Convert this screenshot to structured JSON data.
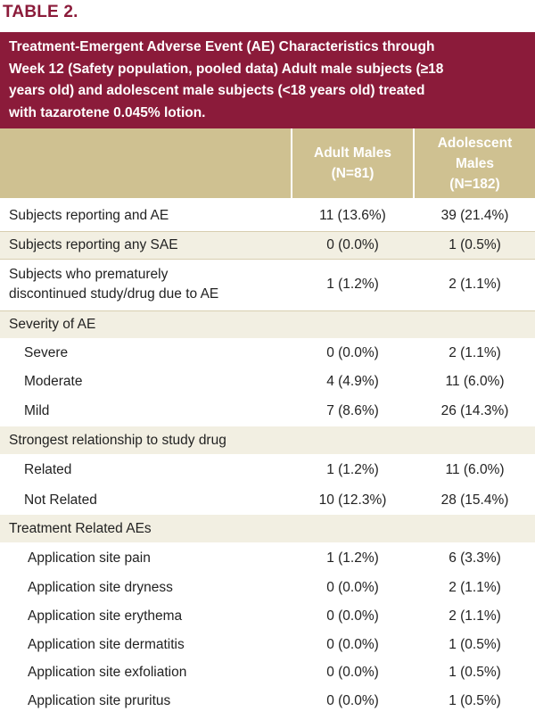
{
  "table_label": "TABLE 2.",
  "title_lines": [
    "Treatment-Emergent Adverse Event (AE) Characteristics through",
    "Week 12 (Safety population, pooled data) Adult male subjects (≥18",
    "years old) and adolescent male subjects (<18 years old) treated",
    "with tazarotene 0.045% lotion."
  ],
  "columns": {
    "adult": [
      "Adult Males",
      "(N=81)"
    ],
    "adolescent": [
      "Adolescent",
      "Males",
      "(N=182)"
    ]
  },
  "rows": [
    {
      "label": [
        "Subjects reporting and AE"
      ],
      "adult": "11 (13.6%)",
      "adolescent": "39 (21.4%)"
    },
    {
      "label": [
        "Subjects reporting any SAE"
      ],
      "adult": "0 (0.0%)",
      "adolescent": "1 (0.5%)"
    },
    {
      "label": [
        "Subjects who prematurely",
        "discontinued study/drug due to AE"
      ],
      "adult": "1 (1.2%)",
      "adolescent": "2 (1.1%)"
    },
    {
      "label": [
        "Severity of AE"
      ],
      "adult": "",
      "adolescent": ""
    },
    {
      "label": [
        "Severe"
      ],
      "adult": "0 (0.0%)",
      "adolescent": "2 (1.1%)"
    },
    {
      "label": [
        "Moderate"
      ],
      "adult": "4 (4.9%)",
      "adolescent": "11 (6.0%)"
    },
    {
      "label": [
        "Mild"
      ],
      "adult": "7 (8.6%)",
      "adolescent": "26 (14.3%)"
    },
    {
      "label": [
        "Strongest relationship to study drug"
      ],
      "adult": "",
      "adolescent": ""
    },
    {
      "label": [
        "Related"
      ],
      "adult": "1 (1.2%)",
      "adolescent": "11 (6.0%)"
    },
    {
      "label": [
        "Not Related"
      ],
      "adult": "10 (12.3%)",
      "adolescent": "28 (15.4%)"
    },
    {
      "label": [
        "Treatment Related AEs"
      ],
      "adult": "",
      "adolescent": ""
    },
    {
      "label": [
        "Application site pain"
      ],
      "adult": "1 (1.2%)",
      "adolescent": "6 (3.3%)"
    },
    {
      "label": [
        "Application site dryness"
      ],
      "adult": "0 (0.0%)",
      "adolescent": "2 (1.1%)"
    },
    {
      "label": [
        "Application site erythema"
      ],
      "adult": "0 (0.0%)",
      "adolescent": "2 (1.1%)"
    },
    {
      "label": [
        "Application site dermatitis"
      ],
      "adult": "0 (0.0%)",
      "adolescent": "1 (0.5%)"
    },
    {
      "label": [
        "Application site exfoliation"
      ],
      "adult": "0 (0.0%)",
      "adolescent": "1 (0.5%)"
    },
    {
      "label": [
        "Application site pruritus"
      ],
      "adult": "0 (0.0%)",
      "adolescent": "1 (0.5%)"
    }
  ],
  "colors": {
    "banner": "#8b1b3a",
    "header": "#cfc191",
    "shaded_row": "#f2efe2"
  }
}
